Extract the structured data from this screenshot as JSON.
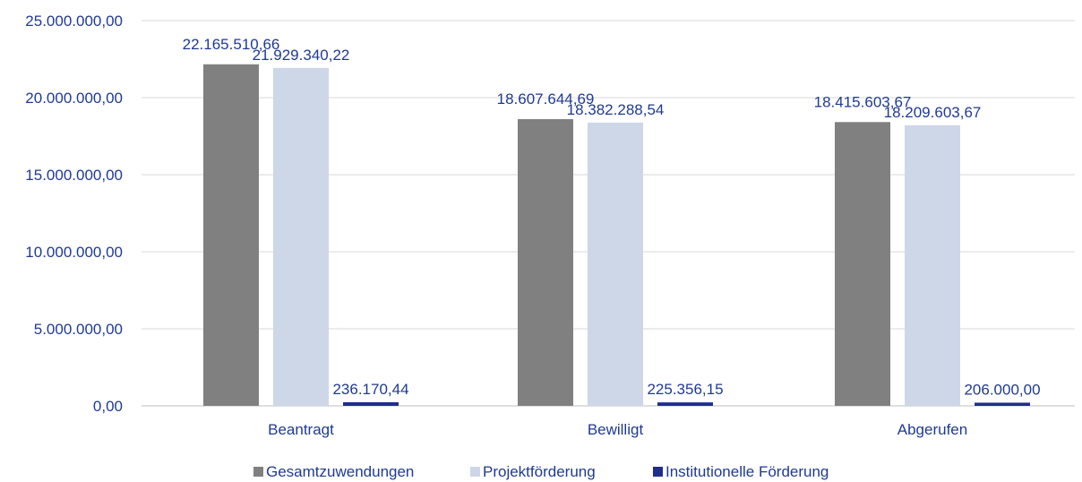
{
  "chart_data": {
    "type": "bar",
    "categories": [
      "Beantragt",
      "Bewilligt",
      "Abgerufen"
    ],
    "series": [
      {
        "name": "Gesamtzuwendungen",
        "color": "#808080",
        "values": [
          22165510.66,
          18607644.69,
          18415603.67
        ],
        "labels": [
          "22.165.510,66",
          "18.607.644,69",
          "18.415.603,67"
        ]
      },
      {
        "name": "Projektförderung",
        "color": "#cdd7e8",
        "values": [
          21929340.22,
          18382288.54,
          18209603.67
        ],
        "labels": [
          "21.929.340,22",
          "18.382.288,54",
          "18.209.603,67"
        ]
      },
      {
        "name": "Institutionelle Förderung",
        "color": "#1f2e8c",
        "values": [
          236170.44,
          225356.15,
          206000.0
        ],
        "labels": [
          "236.170,44",
          "225.356,15",
          "206.000,00"
        ]
      }
    ],
    "yticks": [
      0,
      5000000,
      10000000,
      15000000,
      20000000,
      25000000
    ],
    "ytick_labels": [
      "0,00",
      "5.000.000,00",
      "10.000.000,00",
      "15.000.000,00",
      "20.000.000,00",
      "25.000.000,00"
    ],
    "ylim": [
      0,
      25000000
    ],
    "grid": true,
    "legend_position": "bottom",
    "title": "",
    "xlabel": "",
    "ylabel": ""
  }
}
